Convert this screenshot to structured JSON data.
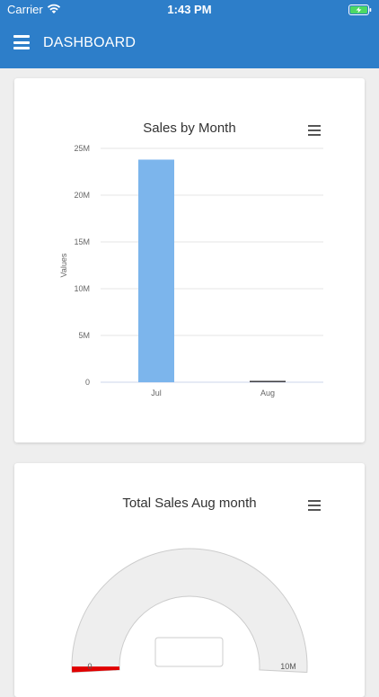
{
  "status_bar": {
    "carrier": "Carrier",
    "time": "1:43 PM"
  },
  "header": {
    "title": "DASHBOARD",
    "menu_icon": "hamburger-icon"
  },
  "colors": {
    "header": "#2d7ec9",
    "bar": "#7cb5ec",
    "gauge_value": "#e00000"
  },
  "chart_data": [
    {
      "type": "bar",
      "title": "Sales by Month",
      "ylabel": "Values",
      "categories": [
        "Jul",
        "Aug"
      ],
      "values": [
        23800000,
        150000
      ],
      "ylim": [
        0,
        25000000
      ],
      "yticks": [
        "0",
        "5M",
        "10M",
        "15M",
        "20M",
        "25M"
      ],
      "grid": true,
      "legend": "none"
    },
    {
      "type": "gauge",
      "title": "Total Sales Aug month",
      "min": 0,
      "max": 10000000,
      "min_label": "0",
      "max_label": "10M",
      "value": 150000
    }
  ]
}
